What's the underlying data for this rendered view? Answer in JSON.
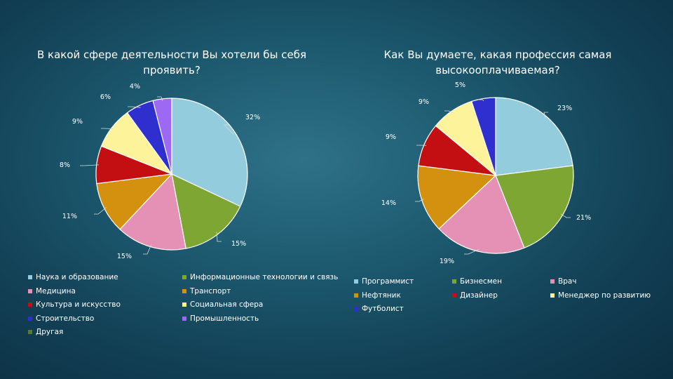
{
  "chart_data": [
    {
      "type": "pie",
      "title": "В какой сфере деятельности Вы хотели бы себя проявить?",
      "categories": [
        "Наука и образование",
        "Информационные технологии и связь",
        "Медицина",
        "Транспорт",
        "Культура и искусство",
        "Социальная сфера",
        "Строительство",
        "Промышленность",
        "Другая"
      ],
      "values": [
        32,
        15,
        15,
        11,
        8,
        9,
        6,
        4,
        0
      ],
      "labels": [
        "32%",
        "15%",
        "15%",
        "11%",
        "8%",
        "9%",
        "6%",
        "4%",
        ""
      ],
      "colors": [
        "#93cddd",
        "#7ea632",
        "#e590b5",
        "#d4900f",
        "#c40f12",
        "#fdf39a",
        "#2e2fce",
        "#9d68f2",
        "#5a7a2e"
      ],
      "legend": "bottom"
    },
    {
      "type": "pie",
      "title": "Как Вы думаете, какая профессия самая высокооплачиваемая?",
      "categories": [
        "Программист",
        "Бизнесмен",
        "Врач",
        "Нефтяник",
        "Дизайнер",
        "Менеджер по развитию",
        "Футболист"
      ],
      "values": [
        23,
        21,
        19,
        14,
        9,
        9,
        5
      ],
      "labels": [
        "23%",
        "21%",
        "19%",
        "14%",
        "9%",
        "9%",
        "5%"
      ],
      "colors": [
        "#93cddd",
        "#7ea632",
        "#e590b5",
        "#d4900f",
        "#c40f12",
        "#fdf39a",
        "#2e2fce"
      ],
      "legend": "bottom"
    }
  ]
}
